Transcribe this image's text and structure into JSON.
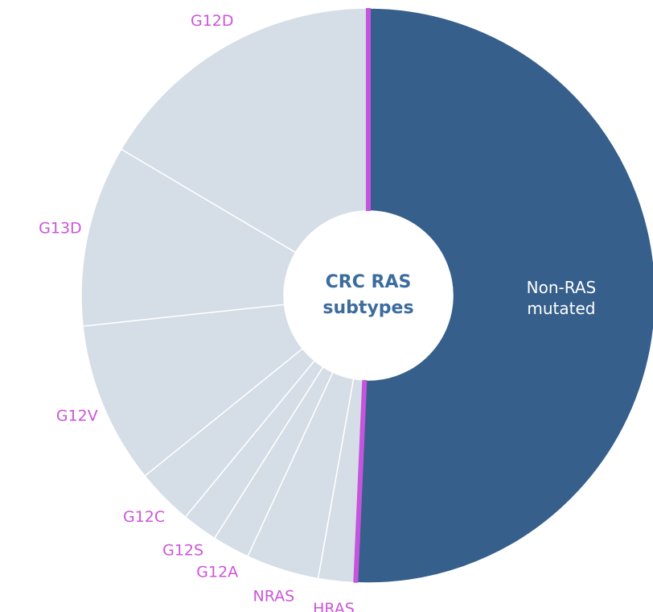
{
  "chart_data": {
    "type": "donut",
    "title": "CRC RAS subtypes",
    "categories": [
      "Non-RAS mutated",
      "HRAS",
      "NRAS",
      "G12A",
      "G12S",
      "G12C",
      "G12V",
      "G13D",
      "G12D"
    ],
    "values": [
      50.7,
      2.1,
      4.1,
      2.1,
      2.0,
      3.2,
      9.1,
      10.2,
      16.5
    ],
    "colors": [
      "#365f8b",
      "#d5dde6",
      "#d5dde6",
      "#d5dde6",
      "#d5dde6",
      "#d5dde6",
      "#d5dde6",
      "#d5dde6",
      "#d5dde6"
    ]
  }
}
